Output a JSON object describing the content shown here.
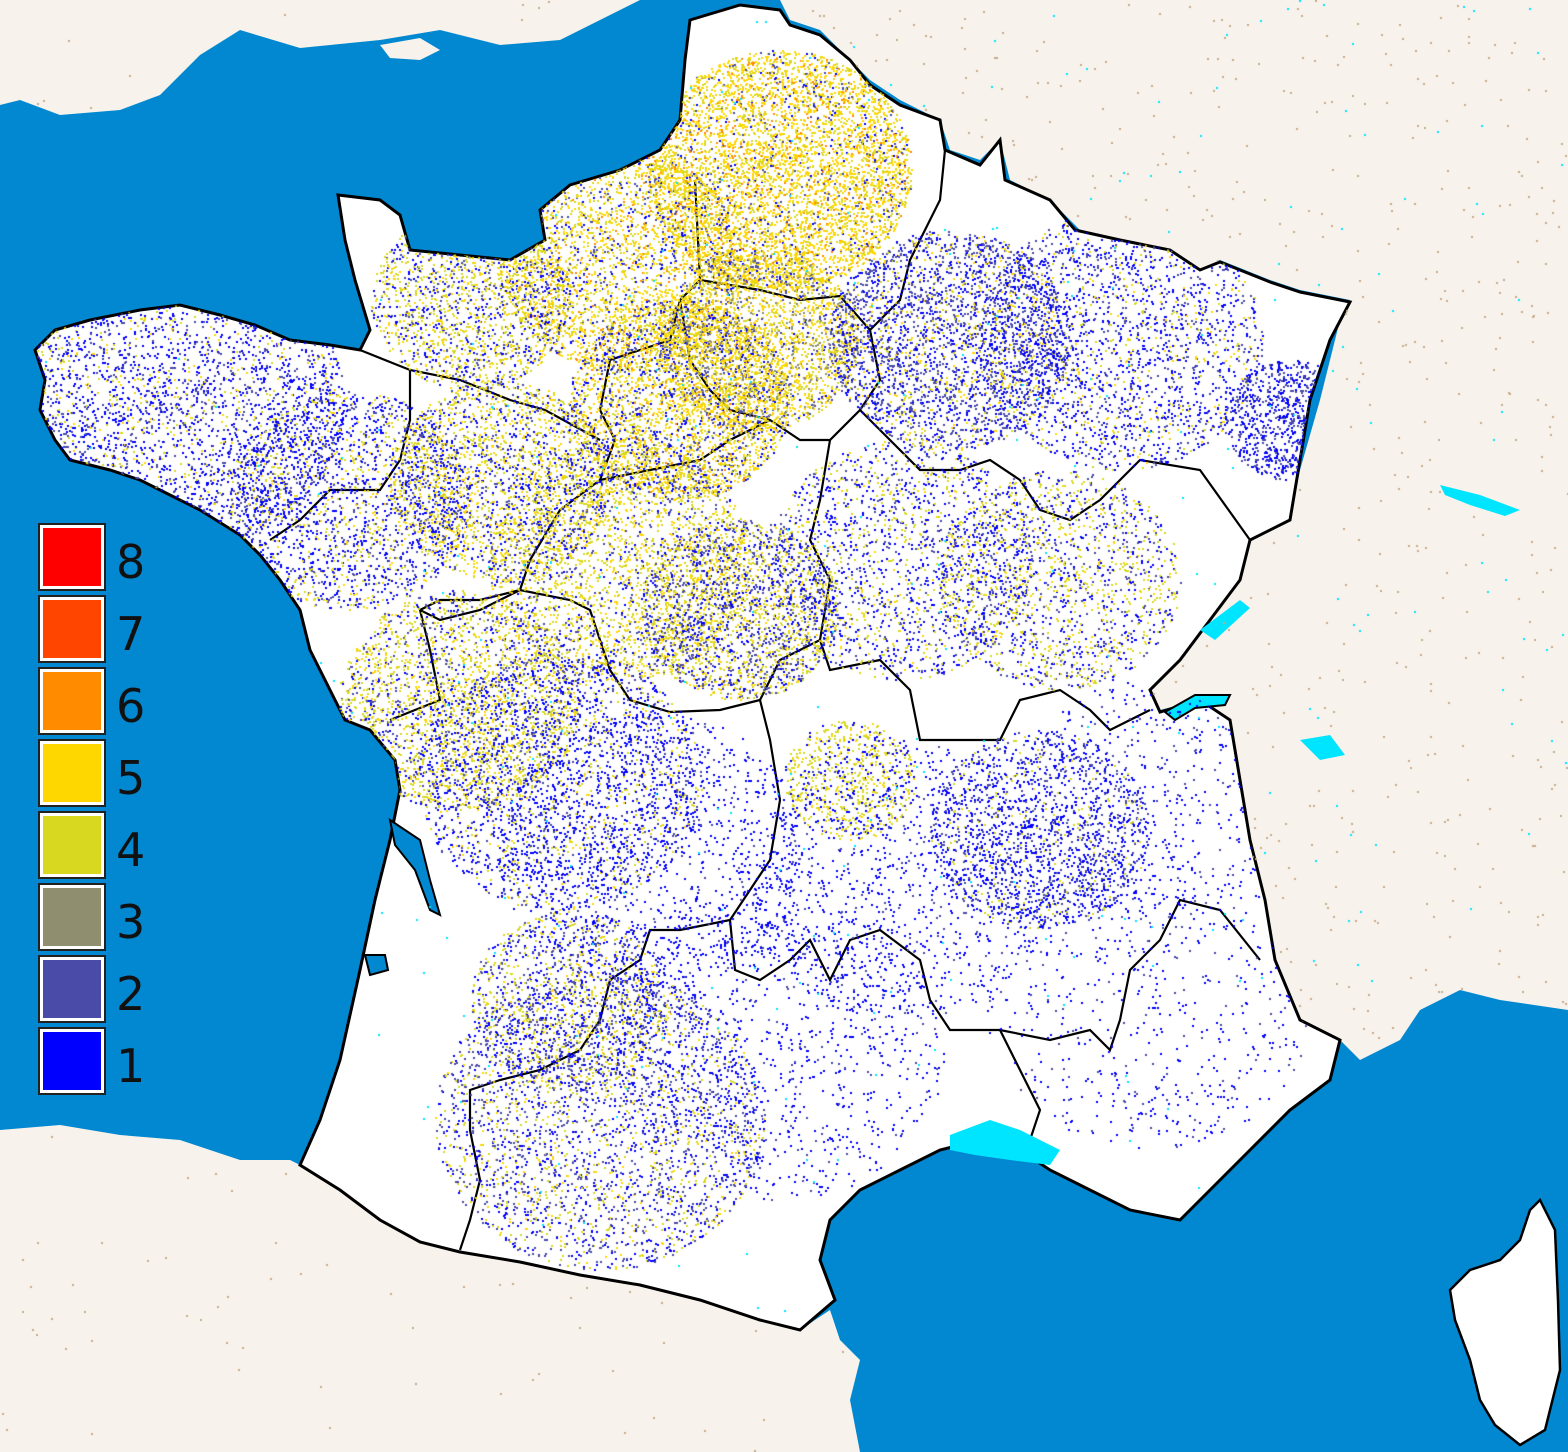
{
  "map": {
    "colors": {
      "sea": "#0288d1",
      "land_france": "#ffffff",
      "land_neighbor": "#f7f3ec",
      "urban_speckle": "#c9a988",
      "water_bodies": "#00e5ff",
      "borders": "#000000"
    },
    "intensity_palette": {
      "1": "#0000ff",
      "2": "#4a4aa8",
      "3": "#8f8f70",
      "4": "#d8d820",
      "5": "#ffd700",
      "6": "#ff8c00",
      "7": "#ff4500",
      "8": "#ff0000"
    }
  },
  "legend": {
    "items": [
      {
        "label": "8",
        "color": "#ff0000"
      },
      {
        "label": "7",
        "color": "#ff4500"
      },
      {
        "label": "6",
        "color": "#ff8c00"
      },
      {
        "label": "5",
        "color": "#ffd700"
      },
      {
        "label": "4",
        "color": "#d8d820"
      },
      {
        "label": "3",
        "color": "#8f8f70"
      },
      {
        "label": "2",
        "color": "#4a4aa8"
      },
      {
        "label": "1",
        "color": "#0000ff"
      }
    ]
  }
}
